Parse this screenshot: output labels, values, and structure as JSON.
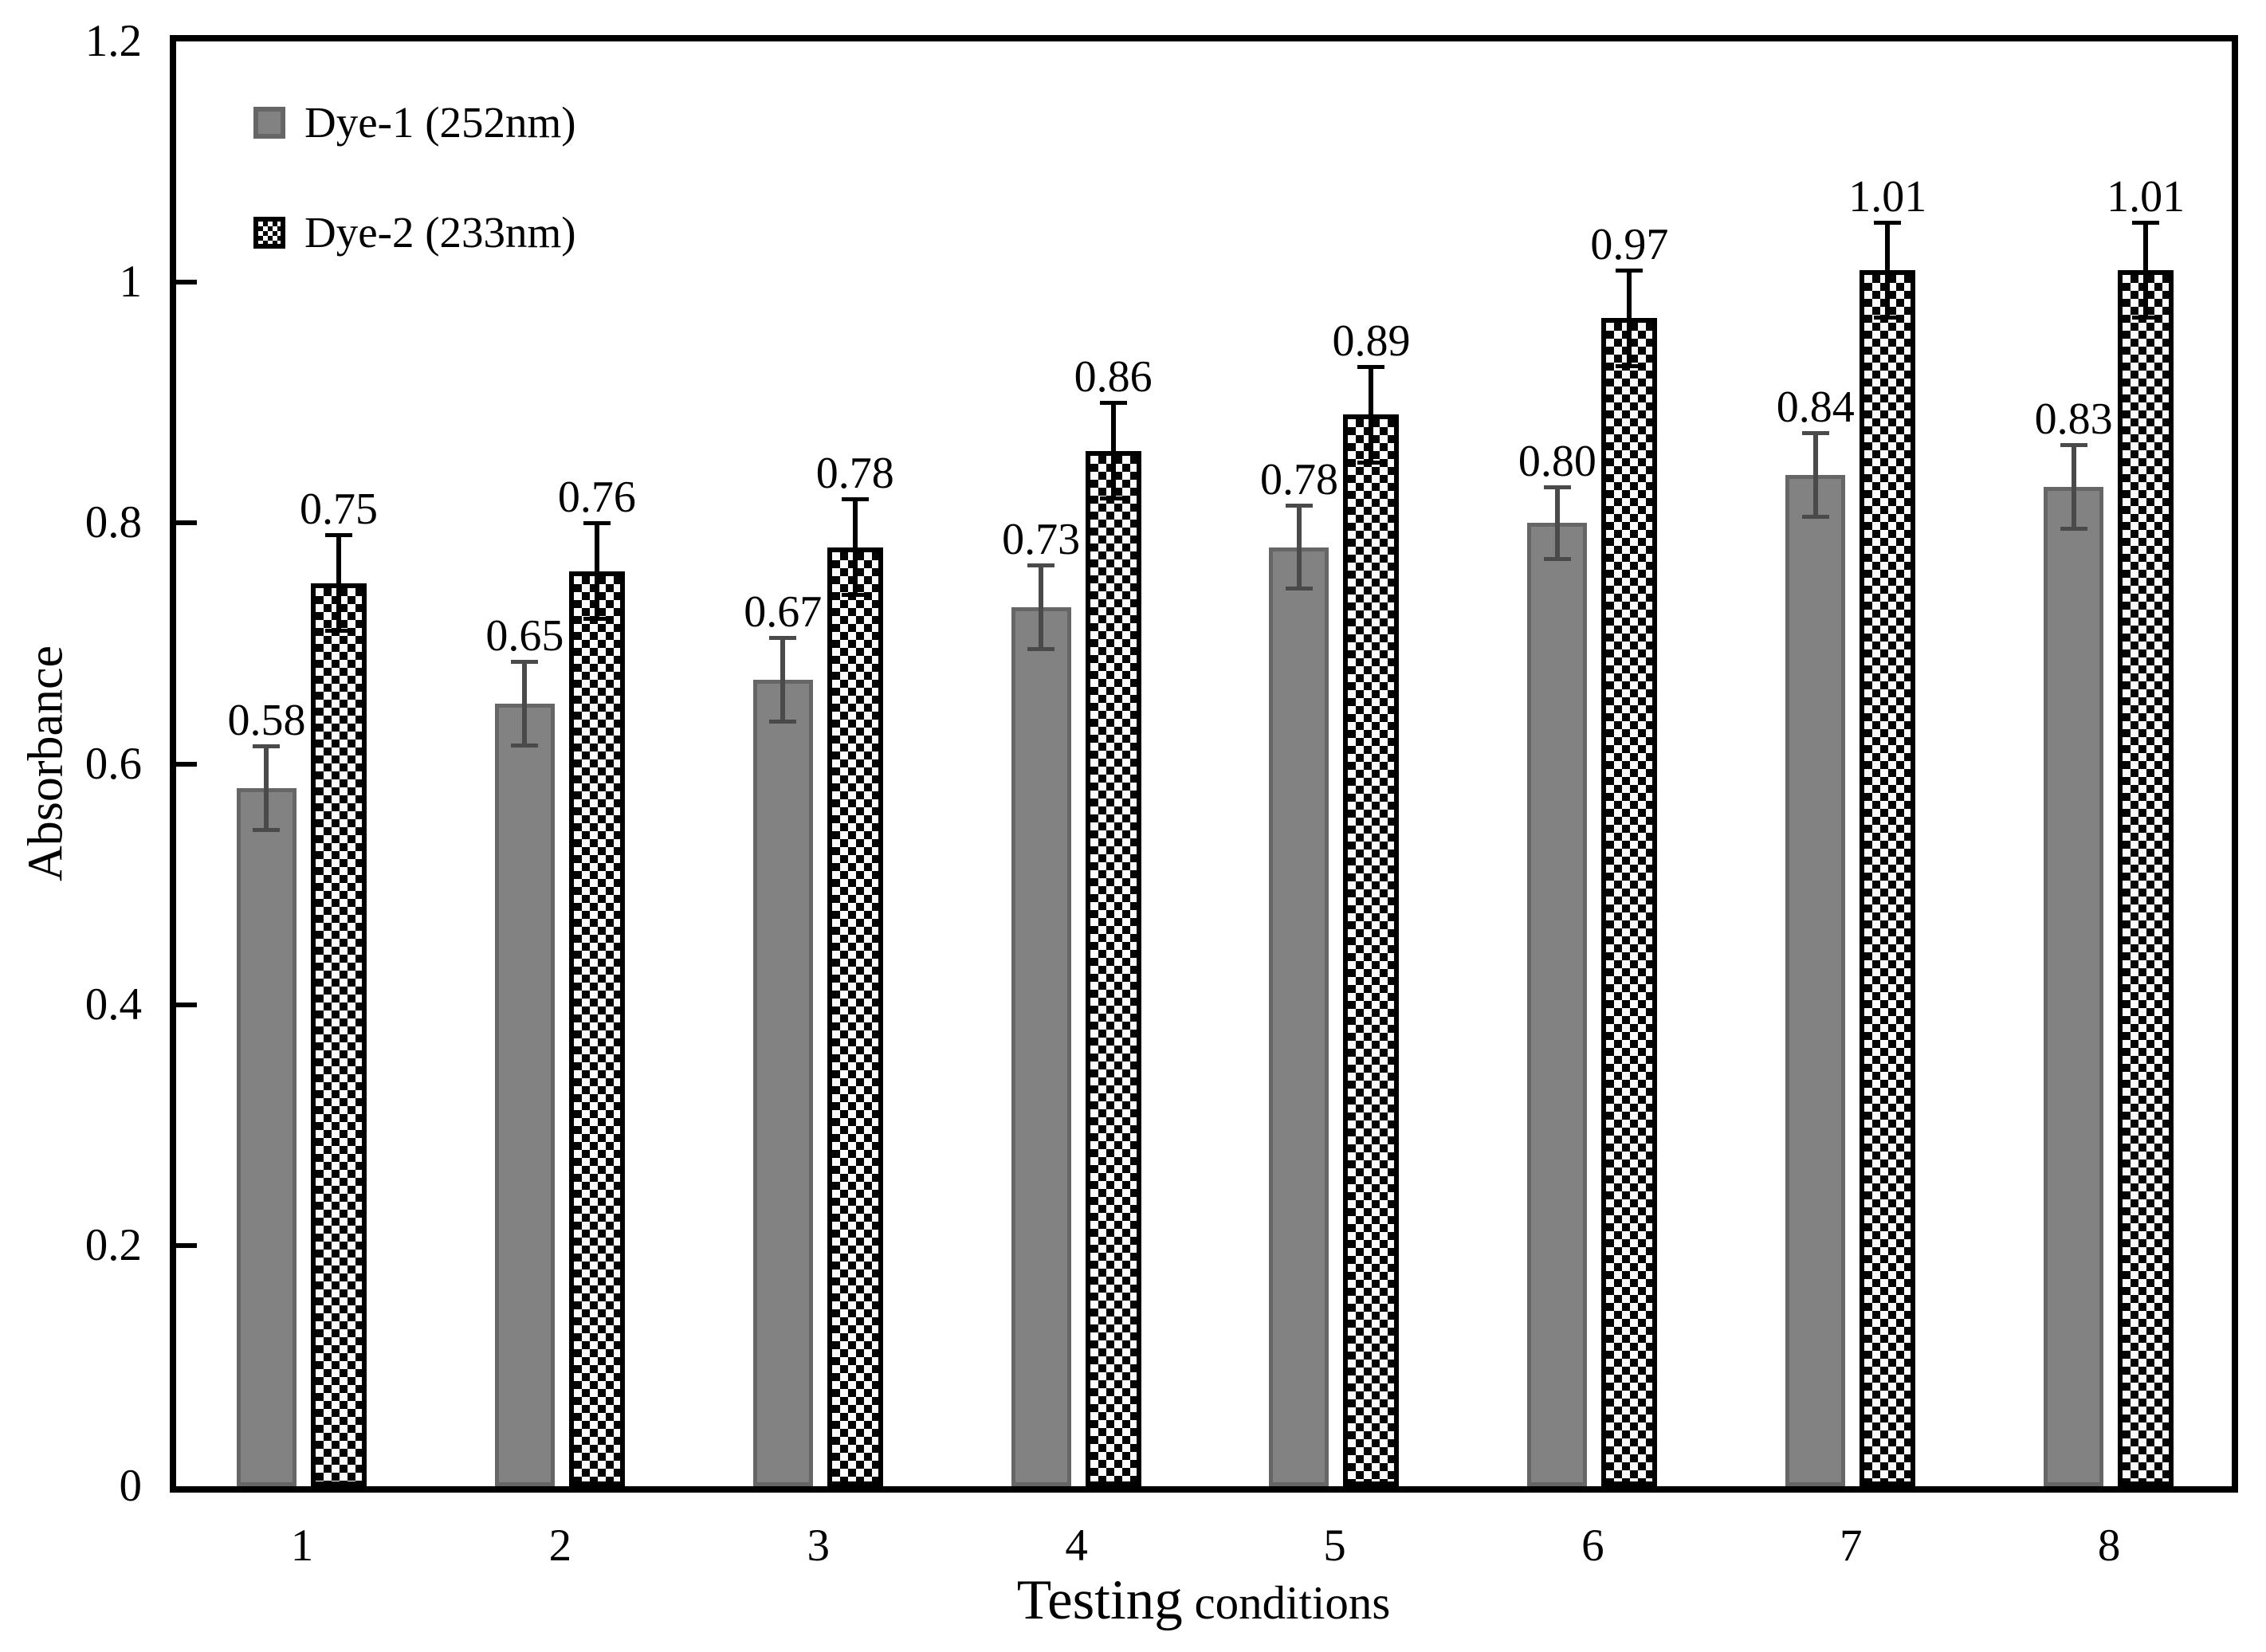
{
  "figure": {
    "background": "#ffffff"
  },
  "chart_data": {
    "type": "bar",
    "title": "",
    "ylabel": "Absorbance",
    "xlabel": "Testing conditions",
    "xlabel_primary": "Testing",
    "xlabel_secondary": " conditions",
    "categories": [
      "1",
      "2",
      "3",
      "4",
      "5",
      "6",
      "7",
      "8"
    ],
    "ylim": [
      0,
      1.2
    ],
    "yticks": [
      {
        "value": 0,
        "label": "0"
      },
      {
        "value": 0.2,
        "label": "0.2"
      },
      {
        "value": 0.4,
        "label": "0.4"
      },
      {
        "value": 0.6,
        "label": "0.6"
      },
      {
        "value": 0.8,
        "label": "0.8"
      },
      {
        "value": 1,
        "label": "1"
      },
      {
        "value": 1.2,
        "label": "1.2"
      }
    ],
    "grid": false,
    "legend_position": "top-left-inside",
    "bar_value_labels_shown": true,
    "error_bars_shown": true,
    "series": [
      {
        "name": "Dye-1 (252nm)",
        "pattern": "solid",
        "fill_color": "#828282",
        "edge_color": "#666666",
        "error_color": "#4a4a4a",
        "values": [
          0.58,
          0.65,
          0.67,
          0.73,
          0.78,
          0.8,
          0.84,
          0.83
        ],
        "errors": [
          0.035,
          0.035,
          0.035,
          0.035,
          0.035,
          0.03,
          0.035,
          0.035
        ],
        "labels": [
          "0.58",
          "0.65",
          "0.67",
          "0.73",
          "0.78",
          "0.80",
          "0.84",
          "0.83"
        ]
      },
      {
        "name": "Dye-2 (233nm)",
        "pattern": "checkerboard",
        "fill_color": "#fbfbfb",
        "pattern_color": "#050505",
        "edge_color": "#000000",
        "error_color": "#000000",
        "values": [
          0.75,
          0.76,
          0.78,
          0.86,
          0.89,
          0.97,
          1.01,
          1.01
        ],
        "errors": [
          0.04,
          0.04,
          0.04,
          0.04,
          0.04,
          0.04,
          0.04,
          0.04
        ],
        "labels": [
          "0.75",
          "0.76",
          "0.78",
          "0.86",
          "0.89",
          "0.97",
          "1.01",
          "1.01"
        ]
      }
    ]
  }
}
